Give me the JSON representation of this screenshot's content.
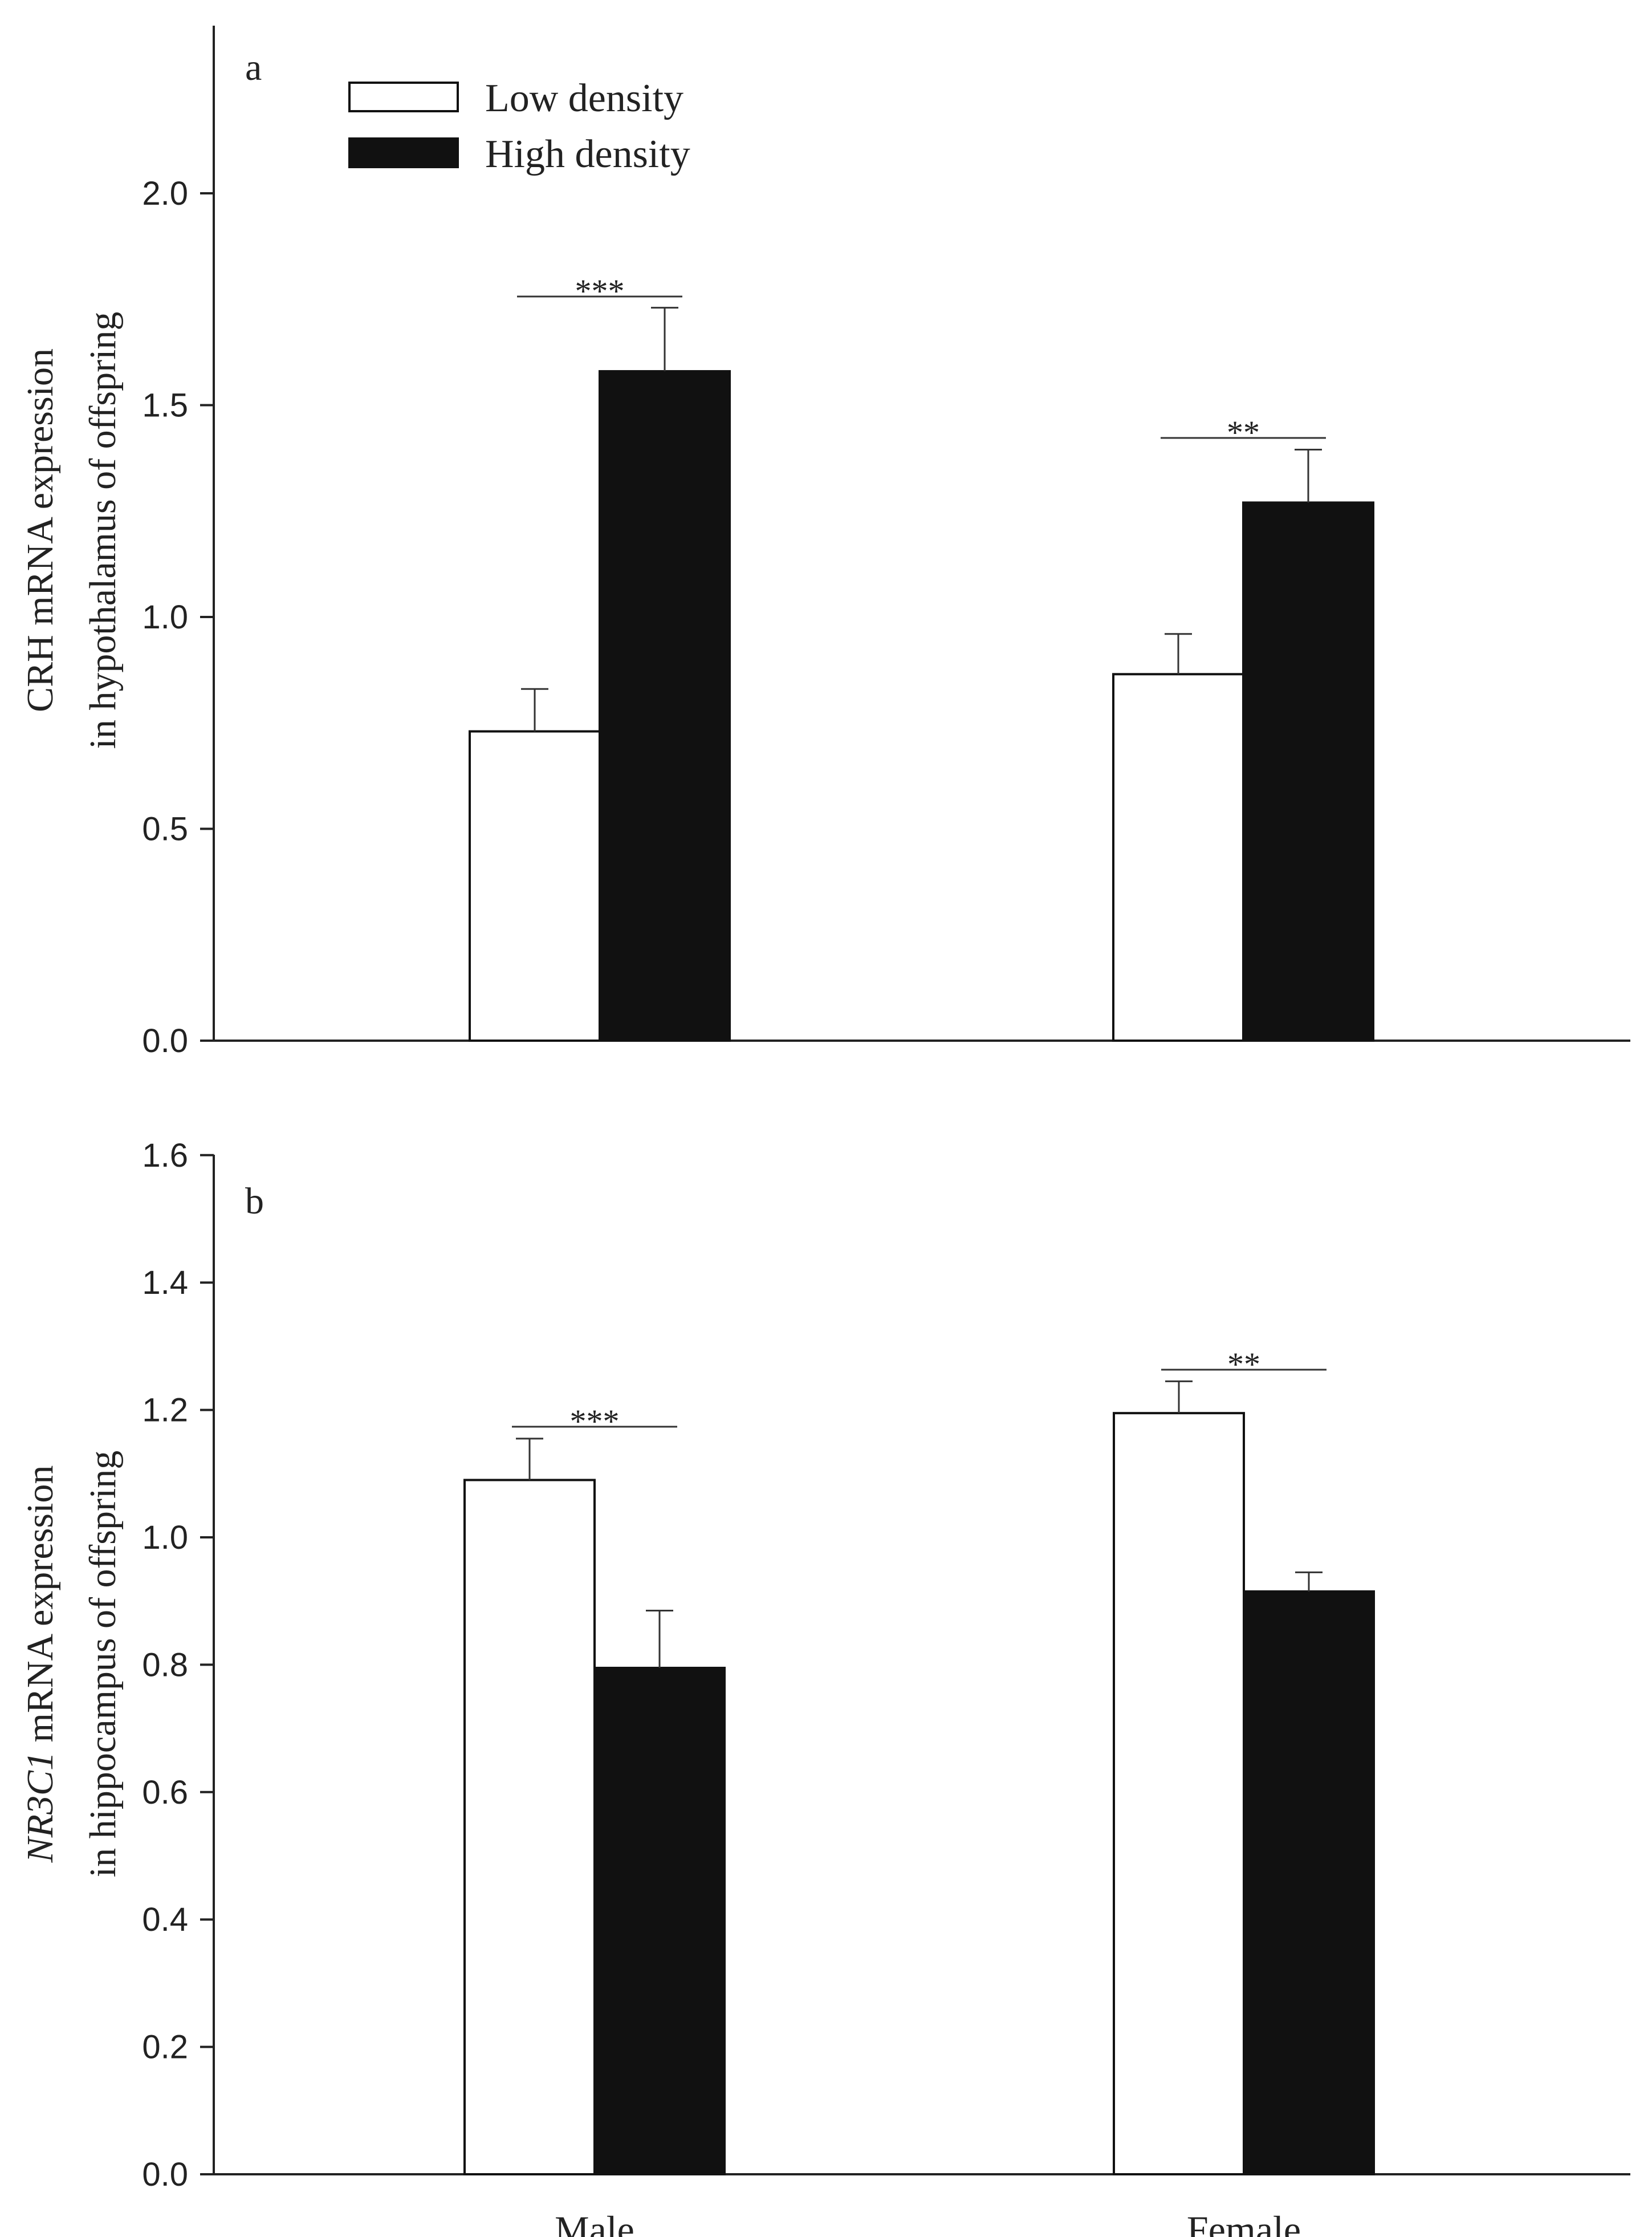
{
  "chart_data": [
    {
      "type": "bar",
      "panel_label": "a",
      "categories": [
        "Male",
        "Female"
      ],
      "ylabel_line1_italic": "",
      "ylabel_line1": "CRH mRNA expression",
      "ylabel_line2": "in hypothalamus of offspring",
      "xlabel": "",
      "ylim": [
        0,
        2.4
      ],
      "yticks": [
        0.0,
        0.5,
        1.0,
        1.5,
        2.0
      ],
      "ytick_labels": [
        "0.0",
        "0.5",
        "1.0",
        "1.5",
        "2.0"
      ],
      "show_category_labels": false,
      "series": [
        {
          "name": "Low density",
          "color": "#ffffff",
          "values": [
            0.73,
            0.865
          ],
          "errors": [
            0.1,
            0.095
          ]
        },
        {
          "name": "High density",
          "color": "#111111",
          "values": [
            1.58,
            1.27
          ],
          "errors": [
            0.15,
            0.125
          ]
        }
      ],
      "significance": [
        "***",
        "**"
      ],
      "legend": {
        "placement": "top-left",
        "entries": [
          "Low density",
          "High density"
        ]
      }
    },
    {
      "type": "bar",
      "panel_label": "b",
      "categories": [
        "Male",
        "Female"
      ],
      "ylabel_line1_italic": "NR3C1",
      "ylabel_line1": " mRNA expression",
      "ylabel_line2": "in hippocampus of offspring",
      "xlabel": "",
      "ylim": [
        0,
        1.6
      ],
      "yticks": [
        0.0,
        0.2,
        0.4,
        0.6,
        0.8,
        1.0,
        1.2,
        1.4,
        1.6
      ],
      "ytick_labels": [
        "0.0",
        "0.2",
        "0.4",
        "0.6",
        "0.8",
        "1.0",
        "1.2",
        "1.4",
        "1.6"
      ],
      "show_category_labels": true,
      "series": [
        {
          "name": "Low density",
          "color": "#ffffff",
          "values": [
            1.09,
            1.195
          ],
          "errors": [
            0.065,
            0.05
          ]
        },
        {
          "name": "High density",
          "color": "#111111",
          "values": [
            0.795,
            0.915
          ],
          "errors": [
            0.09,
            0.03
          ]
        }
      ],
      "significance": [
        "***",
        "**"
      ]
    }
  ]
}
